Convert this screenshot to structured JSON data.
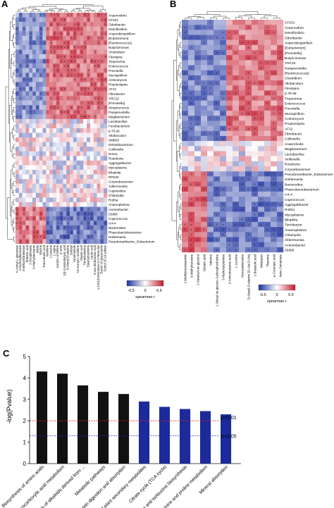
{
  "panels": {
    "a": {
      "label": "A",
      "row_labels": [
        "Anaerovibrio",
        "CF231",
        "Odoribacter",
        "Desulfovibrio",
        "Anaerobiospirillum",
        "[Eubacterium]",
        "[Ruminococcus]",
        "Butyricimonas",
        "Clostridium",
        "Flexispira",
        "Treponema",
        "Enterococcus",
        "Prevotella",
        "Mucispirillum",
        "Actinomyces",
        "Propionispira",
        "AF12",
        "Fibrobacter",
        "YRC22",
        "[Prevotella]",
        "Streptococcus",
        "Paraprevotella",
        "Megibacterium",
        "Lactobacillus",
        "Fusobacterium",
        "p-75-a5",
        "Allobaculum",
        "SMB53",
        "Dehalobacterium",
        "Collinsella",
        "Dorea",
        "Roseburia",
        "Aggregatibacter",
        "Mycoplasma",
        "Bilophila",
        "RFN20",
        "Corynebacterium",
        "Adlercreutzia",
        "Cupriavidus",
        "Chlamydia",
        "Rothia",
        "Anaeroplasma",
        "Acinetobacter",
        "02d06",
        "Coprococcus",
        "rc4-4",
        "Bacteroides",
        "Phascolarctobacterium",
        "Holdemania",
        "Pseudoramibacter_Eubacterium"
      ],
      "col_labels": [
        "N-Acetyl-L-glutamate",
        "4-Hydroxybenzoate",
        "3-Dehydroshikimate",
        "Shikimic acid",
        "2-Oxoglutarate",
        "N-Methylserotonin",
        "Indole",
        "Glycine",
        "Trans-ferulic acid",
        "Xanthine",
        "L-Leucine",
        "L-Valine",
        "Acetyl-L-ornithine",
        "5'-MTA",
        "(S)-2-aminobutyric acid",
        "D-Alanyl-D-alanine",
        "Sorbitol",
        "Nicotinamide",
        "N2-Acetyl-L-ornithine",
        "Stearic acid",
        "Trimethylamine",
        "Stearoylcarnitine",
        "Lauric acid",
        "3-oxo-dodecanoic acid",
        "1,3,5(10)-Estratrien-3,17-beta-diol",
        "Estriol 16-glucuronide",
        "Estriol 16,19-sulfate"
      ],
      "legend_title": "spearman r",
      "legend_ticks": [
        "-0.5",
        "0",
        "0.5"
      ]
    },
    "b": {
      "label": "B",
      "row_labels": [
        "CF231",
        "Anaerovibrio",
        "Desulfovibrio",
        "Odoribacter",
        "Anaerobiospirillum",
        "[Eubacterium]",
        "[Prevotella]",
        "Butyricimonas",
        "YRC22",
        "Paraprevotella",
        "[Ruminococcus]",
        "Clostridium",
        "Allobaculum",
        "Flexispira",
        "p-75-a5",
        "Treponema",
        "Enterococcus",
        "Prevotella",
        "Mucispirillum",
        "Actinomyces",
        "Propionispira",
        "AF12",
        "Fibrobacter",
        "Collinsella",
        "Anaerofustis",
        "Megibacterium",
        "Lactobacillus",
        "Veillonella",
        "Roseburia",
        "Corynebacterium",
        "Pseudoramibacter_Eubacterium",
        "Holdemania",
        "Bacteroides",
        "Phascolarctobacterium",
        "rc4-4",
        "Coprococcus",
        "Aggregatibacter",
        "Rothia",
        "Mycoplasma",
        "Bilophila",
        "Turicibacter",
        "Anaeroplasma",
        "Chlamydia",
        "Akkermansia",
        "Acinetobacter",
        "02d06"
      ],
      "col_labels": [
        "1-Methylnicotinamide",
        "5-Methylcytosine",
        "1-Stearoyl-rac-glycerol",
        "Glutaric acid",
        "Adenine",
        "1-Oleoyl-sn-glycero-3-phosphocholine",
        "3-Hydroxytyramine",
        "3-Aminobutanoic acid",
        "L-Leucine",
        "Deoxyadenosine",
        "D-Alanyl-D-alanine (D-Ala-D-Ala)",
        "2-Butanolic acid",
        "Melatonin",
        "Thiamine",
        "p-Coumaric acid",
        "trans-Cinnamate"
      ],
      "legend_title": "spearman r",
      "legend_ticks": [
        "-0.5",
        "0",
        "0.5"
      ]
    },
    "c": {
      "label": "C"
    }
  },
  "chart_data": [
    {
      "type": "heatmap",
      "panel": "A",
      "rows": 50,
      "cols": 27,
      "color_scale": [
        "#1a2f9e",
        "#ffffff",
        "#c4162a"
      ],
      "value_range": [
        -0.8,
        0.8
      ]
    },
    {
      "type": "heatmap",
      "panel": "B",
      "rows": 46,
      "cols": 16,
      "color_scale": [
        "#1a2f9e",
        "#ffffff",
        "#c4162a"
      ],
      "value_range": [
        -0.8,
        0.8
      ]
    },
    {
      "type": "bar",
      "panel": "C",
      "categories": [
        "Biosynthesis of amino acids",
        "2-Oxocarboxylic acid metabolism",
        "Biosynthesis of alkaloids derived from ...",
        "Metabolic pathways",
        "Protein digestion and absorption",
        "Biosynthesis of plant secondary metabolites",
        "Citrate cycle (TCA cycle)",
        "Valine, leucine and isoleucine biosynthesis",
        "Arginine and proline metabolism",
        "Mineral absorption"
      ],
      "values": [
        4.3,
        4.2,
        3.65,
        3.35,
        3.25,
        2.9,
        2.65,
        2.55,
        2.45,
        2.3
      ],
      "bar_colors": [
        "#111111",
        "#111111",
        "#111111",
        "#111111",
        "#111111",
        "#1c2a9a",
        "#1c2a9a",
        "#1c2a9a",
        "#1c2a9a",
        "#1c2a9a"
      ],
      "ylabel": "-log(Pvalue)",
      "ylim": [
        0,
        5
      ],
      "yticks": [
        "0",
        "1",
        "2",
        "3",
        "4",
        "5"
      ],
      "thresholds": [
        {
          "value": 2.0,
          "label": "p<0.01",
          "color": "#e02020"
        },
        {
          "value": 1.3,
          "label": "p<0.05",
          "color": "#2030c0"
        }
      ],
      "grid": false,
      "legend": "none"
    }
  ]
}
